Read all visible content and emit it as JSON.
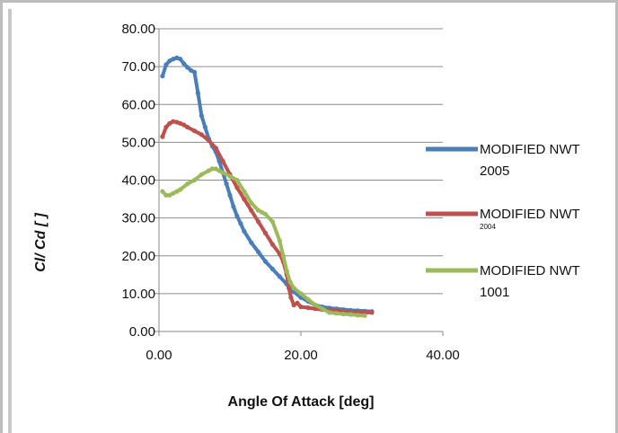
{
  "chart_data": {
    "type": "scatter",
    "xlabel": "Angle Of Attack [deg]",
    "ylabel": "Cl/ Cd [ ]",
    "xlim": [
      0,
      40
    ],
    "ylim": [
      0,
      80
    ],
    "x_ticks": [
      "0.00",
      "20.00",
      "40.00"
    ],
    "y_ticks": [
      "0.00",
      "10.00",
      "20.00",
      "30.00",
      "40.00",
      "50.00",
      "60.00",
      "70.00",
      "80.00"
    ],
    "grid": "horizontal",
    "legend_position": "right",
    "series": [
      {
        "name": "MODIFIED NWT",
        "name_suffix": "2005",
        "color": "#4a7ebb",
        "x": [
          0.5,
          1,
          1.5,
          2,
          2.5,
          3,
          3.5,
          4,
          4.5,
          5,
          5.5,
          6,
          6.5,
          7,
          7.5,
          8,
          8.5,
          9,
          9.5,
          10,
          10.5,
          11,
          11.5,
          12,
          13,
          14,
          15,
          16,
          17,
          18,
          19,
          20,
          21,
          22,
          23,
          24,
          25,
          26,
          27,
          28,
          29,
          30
        ],
        "y": [
          67.5,
          70.5,
          71.5,
          72.0,
          72.3,
          72.0,
          70.8,
          69.8,
          69.0,
          68.5,
          63.0,
          57.0,
          54.0,
          51.0,
          49.0,
          47.5,
          45.0,
          42.0,
          39.0,
          36.0,
          33.0,
          30.5,
          28.5,
          26.5,
          23.5,
          21.0,
          18.5,
          16.5,
          14.5,
          12.5,
          10.5,
          9.0,
          8.0,
          7.0,
          6.5,
          6.2,
          6.0,
          5.8,
          5.6,
          5.5,
          5.4,
          5.3
        ]
      },
      {
        "name": "MODIFIED NWT",
        "name_suffix": "2004",
        "color": "#c0504d",
        "x": [
          0.5,
          1,
          1.5,
          2,
          2.5,
          3,
          3.5,
          4,
          5,
          6,
          7,
          8,
          9,
          10,
          11,
          12,
          13,
          14,
          15,
          16,
          17,
          17.5,
          18,
          18.3,
          18.6,
          19,
          19.5,
          20,
          21,
          22,
          23,
          24,
          25,
          26,
          27,
          28,
          29,
          30
        ],
        "y": [
          51.5,
          54.0,
          55.0,
          55.5,
          55.3,
          55.0,
          54.6,
          54.0,
          53.0,
          52.0,
          50.5,
          48.5,
          45.0,
          41.5,
          38.0,
          35.0,
          32.0,
          29.0,
          26.0,
          23.0,
          20.5,
          18.5,
          15.0,
          11.5,
          9.0,
          7.0,
          7.5,
          6.5,
          6.3,
          6.0,
          5.8,
          5.6,
          5.5,
          5.3,
          5.2,
          5.1,
          5.0,
          5.0
        ]
      },
      {
        "name": "MODIFIED NWT",
        "name_suffix": "1001",
        "color": "#9bbb59",
        "x": [
          0.5,
          1,
          1.5,
          2,
          2.5,
          3,
          4,
          5,
          6,
          7,
          7.5,
          8,
          8.5,
          9,
          10,
          11,
          12,
          13,
          14,
          14.5,
          15,
          16,
          17,
          17.5,
          18,
          18.5,
          19,
          20,
          21,
          22,
          23,
          24,
          25,
          26,
          27,
          28,
          29
        ],
        "y": [
          37.0,
          36.0,
          36.0,
          36.5,
          37.0,
          37.5,
          39.0,
          40.0,
          41.5,
          42.5,
          43.0,
          43.0,
          42.5,
          42.0,
          41.0,
          40.0,
          37.0,
          34.0,
          32.0,
          31.5,
          31.0,
          29.0,
          24.0,
          20.0,
          16.0,
          13.0,
          11.5,
          10.0,
          8.5,
          7.0,
          6.0,
          5.0,
          4.8,
          4.6,
          4.5,
          4.3,
          4.2
        ]
      }
    ]
  }
}
